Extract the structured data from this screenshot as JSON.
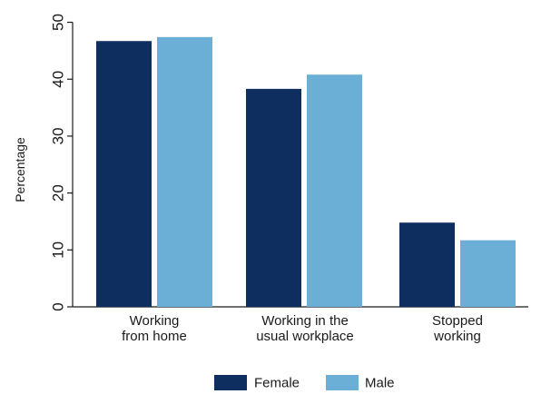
{
  "chart_data": {
    "type": "bar",
    "categories": [
      [
        "Working",
        "from home"
      ],
      [
        "Working in the",
        "usual workplace"
      ],
      [
        "Stopped",
        "working"
      ]
    ],
    "series": [
      {
        "name": "Female",
        "values": [
          46.7,
          38.3,
          14.8
        ],
        "color": "#0d2e5f"
      },
      {
        "name": "Male",
        "values": [
          47.4,
          40.8,
          11.7
        ],
        "color": "#6baed6"
      }
    ],
    "title": "",
    "xlabel": "",
    "ylabel": "Percentage",
    "ylim": [
      0,
      52
    ],
    "yticks": [
      0,
      10,
      20,
      30,
      40,
      50
    ],
    "grid": false,
    "legend_position": "bottom-center"
  }
}
